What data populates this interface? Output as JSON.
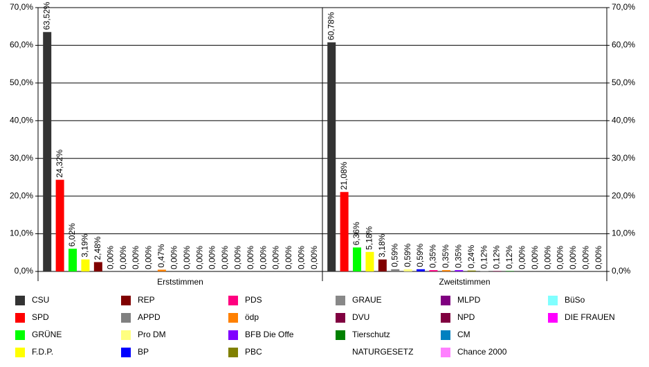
{
  "chart_data": {
    "type": "bar",
    "categories": [
      "Erststimmen",
      "Zweitstimmen"
    ],
    "ylim": [
      0,
      70
    ],
    "yticks": [
      {
        "value": 0,
        "label": "0,0%"
      },
      {
        "value": 10,
        "label": "10,0%"
      },
      {
        "value": 20,
        "label": "20,0%"
      },
      {
        "value": 30,
        "label": "30,0%"
      },
      {
        "value": 40,
        "label": "40,0%"
      },
      {
        "value": 50,
        "label": "50,0%"
      },
      {
        "value": 60,
        "label": "60,0%"
      },
      {
        "value": 70,
        "label": "70,0%"
      }
    ],
    "grid": true,
    "series": [
      {
        "name": "CSU",
        "color": "#333333",
        "values": [
          63.52,
          60.78
        ],
        "value_labels": [
          "63,52%",
          "60,78%"
        ]
      },
      {
        "name": "SPD",
        "color": "#ff0000",
        "values": [
          24.32,
          21.08
        ],
        "value_labels": [
          "24,32%",
          "21,08%"
        ]
      },
      {
        "name": "GRÜNE",
        "color": "#00ff00",
        "values": [
          6.02,
          6.36
        ],
        "value_labels": [
          "6,02%",
          "6,36%"
        ]
      },
      {
        "name": "F.D.P.",
        "color": "#ffff00",
        "values": [
          3.19,
          5.18
        ],
        "value_labels": [
          "3,19%",
          "5,18%"
        ]
      },
      {
        "name": "REP",
        "color": "#800000",
        "values": [
          2.48,
          3.18
        ],
        "value_labels": [
          "2,48%",
          "3,18%"
        ]
      },
      {
        "name": "APPD",
        "color": "#808080",
        "values": [
          0,
          0.59
        ],
        "value_labels": [
          "0,00%",
          "0,59%"
        ]
      },
      {
        "name": "Pro DM",
        "color": "#ffff80",
        "values": [
          0,
          0.59
        ],
        "value_labels": [
          "0,00%",
          "0,59%"
        ]
      },
      {
        "name": "BP",
        "color": "#0000ff",
        "values": [
          0,
          0.59
        ],
        "value_labels": [
          "0,00%",
          "0,59%"
        ]
      },
      {
        "name": "PDS",
        "color": "#ff0080",
        "values": [
          0,
          0.35
        ],
        "value_labels": [
          "0,00%",
          "0,35%"
        ]
      },
      {
        "name": "ödp",
        "color": "#ff8000",
        "values": [
          0.47,
          0.35
        ],
        "value_labels": [
          "0,47%",
          "0,35%"
        ]
      },
      {
        "name": "BFB Die Offe",
        "color": "#8000ff",
        "values": [
          0,
          0.35
        ],
        "value_labels": [
          "0,00%",
          "0,35%"
        ]
      },
      {
        "name": "PBC",
        "color": "#808000",
        "values": [
          0,
          0.24
        ],
        "value_labels": [
          "0,00%",
          "0,24%"
        ]
      },
      {
        "name": "GRAUE",
        "color": "#888888",
        "values": [
          0,
          0.12
        ],
        "value_labels": [
          "0,00%",
          "0,12%"
        ]
      },
      {
        "name": "DVU",
        "color": "#800040",
        "values": [
          0,
          0.12
        ],
        "value_labels": [
          "0,00%",
          "0,12%"
        ]
      },
      {
        "name": "Tierschutz",
        "color": "#008000",
        "values": [
          0,
          0.12
        ],
        "value_labels": [
          "0,00%",
          "0,12%"
        ]
      },
      {
        "name": "NATURGESETZ",
        "color": "#ffffff",
        "values": [
          0,
          0
        ],
        "value_labels": [
          "0,00%",
          "0,00%"
        ]
      },
      {
        "name": "MLPD",
        "color": "#800080",
        "values": [
          0,
          0
        ],
        "value_labels": [
          "0,00%",
          "0,00%"
        ]
      },
      {
        "name": "NPD",
        "color": "#800040",
        "values": [
          0,
          0
        ],
        "value_labels": [
          "0,00%",
          "0,00%"
        ]
      },
      {
        "name": "CM",
        "color": "#0080c0",
        "values": [
          0,
          0
        ],
        "value_labels": [
          "0,00%",
          "0,00%"
        ]
      },
      {
        "name": "Chance 2000",
        "color": "#ff80ff",
        "values": [
          0,
          0
        ],
        "value_labels": [
          "0,00%",
          "0,00%"
        ]
      },
      {
        "name": "BüSo",
        "color": "#80ffff",
        "values": [
          0,
          0
        ],
        "value_labels": [
          "0,00%",
          "0,00%"
        ]
      },
      {
        "name": "DIE FRAUEN",
        "color": "#ff00ff",
        "values": [
          0,
          0
        ],
        "value_labels": [
          "0,00%",
          "0,00%"
        ]
      }
    ]
  }
}
